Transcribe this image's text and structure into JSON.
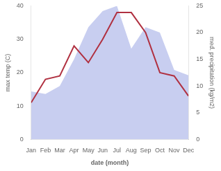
{
  "chart_data": {
    "type": "line",
    "xlabel": "date (month)",
    "ylabel": "max temp (C)",
    "y2label": "med. precipitation (kg/m2)",
    "categories": [
      "Jan",
      "Feb",
      "Mar",
      "Apr",
      "May",
      "Jun",
      "Jul",
      "Aug",
      "Sep",
      "Oct",
      "Nov",
      "Dec"
    ],
    "series": [
      {
        "type": "area",
        "axis": "y2",
        "color": "#c8cef0",
        "values": [
          9,
          8.5,
          10,
          15,
          21,
          24,
          25,
          17,
          21,
          20,
          13,
          12
        ]
      },
      {
        "type": "line",
        "color": "#b03040",
        "values": [
          11,
          18,
          19,
          28,
          23,
          30,
          38,
          38,
          32,
          20,
          19,
          13
        ]
      }
    ],
    "ylim": [
      0,
      40
    ],
    "yticks": [
      0,
      10,
      20,
      30,
      40
    ],
    "y2lim": [
      0,
      25
    ],
    "y2ticks": [
      0,
      5,
      10,
      15,
      20,
      25
    ],
    "grid": false
  }
}
